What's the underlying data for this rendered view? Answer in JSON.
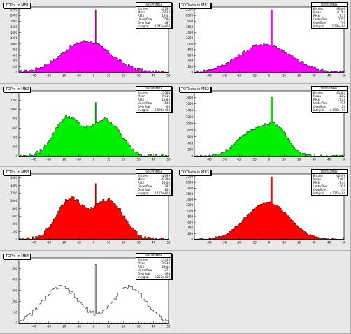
{
  "chart_data": [
    {
      "type": "bar",
      "title": "TOPhi in MB1",
      "stats": {
        "name": "hTOPhiMB1",
        "rows": [
          [
            "Entries",
            "35332"
          ],
          [
            "Mean",
            "-7.633"
          ],
          [
            "RMS",
            "17.41"
          ],
          [
            "Underflow",
            "1586"
          ],
          [
            "Overflow",
            "487"
          ],
          [
            "Integral",
            "3.347e+04"
          ]
        ]
      },
      "xlim": [
        -50,
        50
      ],
      "ylim": [
        0,
        2300
      ],
      "yticks": [
        0,
        200,
        400,
        600,
        800,
        1000,
        1200,
        1400,
        1600,
        1800,
        2000,
        2200
      ],
      "color": "#ff00ff",
      "shape": {
        "type": "single",
        "peaks": [
          [
            -5,
            1100,
            16
          ]
        ],
        "spike": 2200,
        "noise": 50
      }
    },
    {
      "type": "bar",
      "title": "TOTheta in MB1",
      "stats": {
        "name": "ththetaMB1",
        "rows": [
          [
            "Entries",
            "40469"
          ],
          [
            "Mean",
            "-0.784"
          ],
          [
            "RMS",
            "17.57"
          ],
          [
            "Underflow",
            "1258"
          ],
          [
            "Overflow",
            "797"
          ],
          [
            "Integral",
            "3.29e+04"
          ]
        ]
      },
      "xlim": [
        -50,
        50
      ],
      "ylim": [
        0,
        2300
      ],
      "yticks": [
        0,
        200,
        400,
        600,
        800,
        1000,
        1200,
        1400,
        1600,
        1800,
        2000,
        2200
      ],
      "color": "#ff00ff",
      "shape": {
        "type": "single",
        "peaks": [
          [
            -3,
            1000,
            17
          ]
        ],
        "spike": 2200,
        "noise": 50
      }
    },
    {
      "type": "bar",
      "title": "TOPhi in MB2",
      "stats": {
        "name": "hTOPhiMB2",
        "rows": [
          [
            "Entries",
            "41584"
          ],
          [
            "Mean",
            "-9.016"
          ],
          [
            "RMS",
            "14.83"
          ],
          [
            "Underflow",
            "-548"
          ],
          [
            "Overflow",
            "68"
          ],
          [
            "Integral",
            "4.096e+04"
          ]
        ]
      },
      "xlim": [
        -50,
        50
      ],
      "ylim": [
        0,
        1400
      ],
      "yticks": [
        0,
        200,
        400,
        600,
        800,
        1000,
        1200
      ],
      "color": "#00ee00",
      "shape": {
        "type": "double",
        "peaks": [
          [
            -18,
            820,
            9
          ],
          [
            8,
            780,
            10
          ]
        ],
        "spike": 1150,
        "noise": 35
      }
    },
    {
      "type": "bar",
      "title": "TOTheta in MB2",
      "stats": {
        "name": "ththetaMB2",
        "rows": [
          [
            "Entries",
            "41584"
          ],
          [
            "Mean",
            "13.2"
          ],
          [
            "RMS",
            "17.07"
          ],
          [
            "Underflow",
            "975"
          ],
          [
            "Overflow",
            "126"
          ],
          [
            "Integral",
            "4.096e+04"
          ]
        ]
      },
      "xlim": [
        -50,
        50
      ],
      "ylim": [
        0,
        2000
      ],
      "yticks": [
        0,
        200,
        400,
        600,
        800,
        1000,
        1200,
        1400,
        1600,
        1800
      ],
      "color": "#00ee00",
      "shape": {
        "type": "double",
        "peaks": [
          [
            -12,
            720,
            10
          ],
          [
            5,
            800,
            8
          ]
        ],
        "spike": 1800,
        "noise": 35
      }
    },
    {
      "type": "bar",
      "title": "TOPhi in MB3",
      "stats": {
        "name": "hTOPhiMB3",
        "rows": [
          [
            "Entries",
            "42499"
          ],
          [
            "Mean",
            "-6.289"
          ],
          [
            "RMS",
            "15.46"
          ],
          [
            "Underflow",
            "787"
          ],
          [
            "Overflow",
            "162"
          ],
          [
            "Integral",
            "4.115e+04"
          ]
        ]
      },
      "xlim": [
        -50,
        50
      ],
      "ylim": [
        0,
        1700
      ],
      "yticks": [
        0,
        200,
        400,
        600,
        800,
        1000,
        1200,
        1400,
        1600
      ],
      "color": "#ff0000",
      "shape": {
        "type": "double",
        "peaks": [
          [
            -16,
            1050,
            9
          ],
          [
            10,
            1020,
            10
          ]
        ],
        "spike": 1450,
        "noise": 40
      }
    },
    {
      "type": "bar",
      "title": "TOTheta in MB3",
      "stats": {
        "name": "ththetaMB3",
        "rows": [
          [
            "Entries",
            "42499"
          ],
          [
            "Mean",
            "7.007"
          ],
          [
            "RMS",
            "17.44"
          ],
          [
            "Underflow",
            "926"
          ],
          [
            "Overflow",
            "134"
          ],
          [
            "Integral",
            "4.135e+04"
          ]
        ]
      },
      "xlim": [
        -50,
        50
      ],
      "ylim": [
        0,
        2300
      ],
      "yticks": [
        0,
        200,
        400,
        600,
        800,
        1000,
        1200,
        1400,
        1600,
        1800,
        2000,
        2200
      ],
      "color": "#ff0000",
      "shape": {
        "type": "double",
        "peaks": [
          [
            -8,
            780,
            12
          ],
          [
            6,
            760,
            12
          ]
        ],
        "spike": 2200,
        "noise": 35
      }
    },
    {
      "type": "bar",
      "title": "TOPhi in MB4",
      "stats": {
        "name": "hTOPhiMB4",
        "rows": [
          [
            "Entries",
            "23448"
          ],
          [
            "Mean",
            "3.913"
          ],
          [
            "RMS",
            "23.43"
          ],
          [
            "Underflow",
            "271"
          ],
          [
            "Overflow",
            "498"
          ],
          [
            "Integral",
            "2.252e+04"
          ]
        ]
      },
      "xlim": [
        -50,
        50
      ],
      "ylim": [
        0,
        600
      ],
      "yticks": [
        0,
        100,
        200,
        300,
        400,
        500,
        600
      ],
      "color": "none",
      "shape": {
        "type": "double",
        "peaks": [
          [
            -22,
            330,
            12
          ],
          [
            24,
            330,
            11
          ]
        ],
        "spike": 540,
        "noise": 18
      }
    }
  ],
  "xticks": [
    -40,
    -30,
    -20,
    -10,
    0,
    10,
    20,
    30,
    40,
    50
  ]
}
